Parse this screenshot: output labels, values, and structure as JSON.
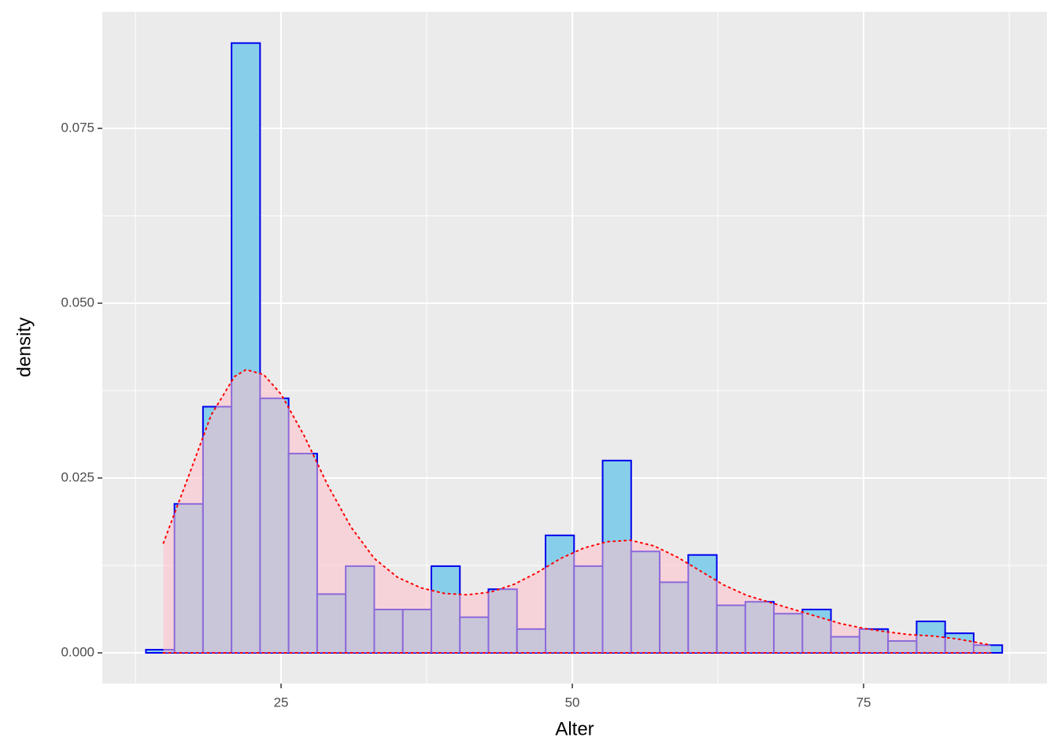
{
  "chart_data": {
    "type": "histogram",
    "x_label": "Alter",
    "y_label": "density",
    "bins": [
      13.4,
      15.85,
      18.3,
      20.75,
      23.2,
      25.65,
      28.1,
      30.55,
      33.0,
      35.45,
      37.9,
      40.35,
      42.8,
      45.25,
      47.7,
      50.15,
      52.6,
      55.05,
      57.5,
      59.95,
      62.4,
      64.85,
      67.3,
      69.75,
      72.2,
      74.65,
      77.1,
      79.55,
      82.0,
      84.45,
      86.9
    ],
    "values": [
      0.00045,
      0.0213,
      0.0352,
      0.0872,
      0.0364,
      0.0285,
      0.0084,
      0.0124,
      0.0062,
      0.0062,
      0.0124,
      0.0051,
      0.0091,
      0.0034,
      0.0168,
      0.0124,
      0.0275,
      0.0145,
      0.0101,
      0.014,
      0.0068,
      0.0073,
      0.0056,
      0.0062,
      0.0023,
      0.0034,
      0.0017,
      0.0045,
      0.0028,
      0.0011
    ],
    "color": "#87ceeb",
    "edgecolor": "#0000ee",
    "density_curve": {
      "x": [
        14.9,
        17,
        19,
        21,
        22,
        23.5,
        25,
        27,
        29,
        31,
        33,
        35,
        37,
        39,
        41,
        43,
        45,
        47,
        49,
        51,
        53,
        55,
        57,
        59,
        61,
        63,
        65,
        67,
        69,
        71,
        73,
        75,
        77,
        79,
        81,
        83,
        85,
        85.9
      ],
      "values": [
        0.0157,
        0.025,
        0.034,
        0.0395,
        0.0405,
        0.0398,
        0.037,
        0.031,
        0.024,
        0.018,
        0.0135,
        0.0108,
        0.0093,
        0.0085,
        0.0083,
        0.0087,
        0.0098,
        0.0115,
        0.0135,
        0.015,
        0.0159,
        0.0161,
        0.0153,
        0.0137,
        0.0117,
        0.0097,
        0.0082,
        0.0072,
        0.0062,
        0.0052,
        0.0042,
        0.0035,
        0.003,
        0.0026,
        0.0024,
        0.002,
        0.0014,
        0.0011
      ],
      "color": "#ff0000",
      "fill": "#ffc0cb"
    },
    "xlim": [
      9.66,
      90.74
    ],
    "ylim": [
      -0.00439,
      0.09167
    ],
    "xticks": [
      25,
      50,
      75
    ],
    "yticks": [
      {
        "value": 0,
        "label": "0.000"
      },
      {
        "value": 0.025,
        "label": "0.025"
      },
      {
        "value": 0.05,
        "label": "0.050"
      },
      {
        "value": 0.075,
        "label": "0.075"
      }
    ],
    "grid": true
  }
}
